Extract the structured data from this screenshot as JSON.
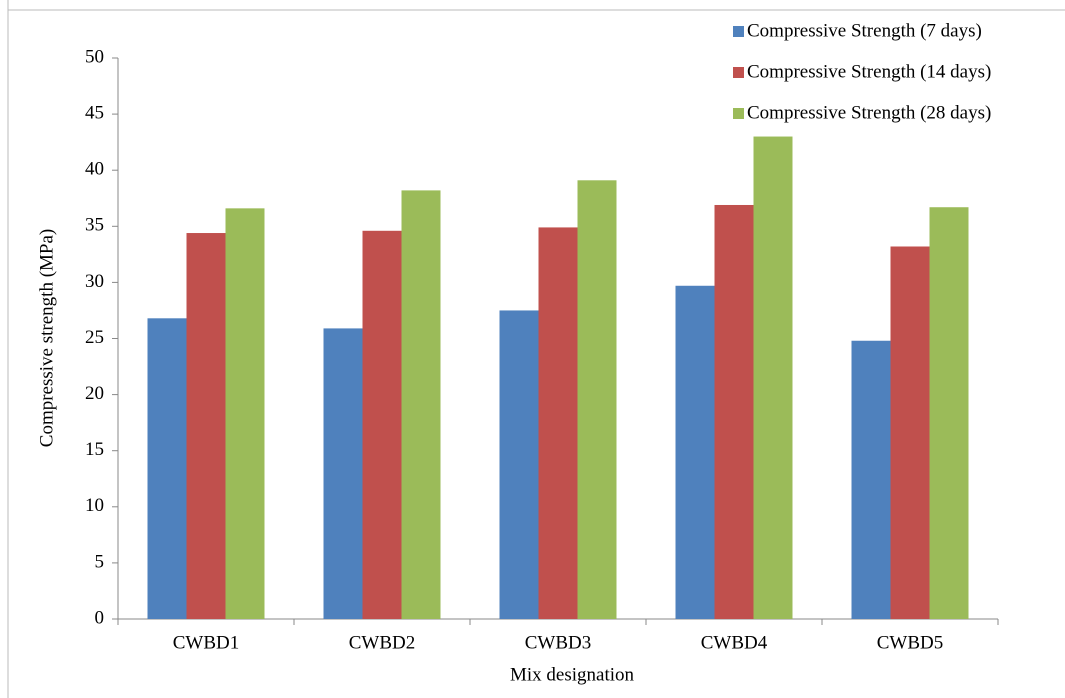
{
  "chart_data": {
    "type": "bar",
    "categories": [
      "CWBD1",
      "CWBD2",
      "CWBD3",
      "CWBD4",
      "CWBD5"
    ],
    "series": [
      {
        "name": "Compressive Strength (7 days)",
        "color": "#4f81bd",
        "values": [
          26.8,
          25.9,
          27.5,
          29.7,
          24.8
        ]
      },
      {
        "name": "Compressive Strength (14 days)",
        "color": "#c0504d",
        "values": [
          34.4,
          34.6,
          34.9,
          36.9,
          33.2
        ]
      },
      {
        "name": "Compressive Strength (28 days)",
        "color": "#9bbb59",
        "values": [
          36.6,
          38.2,
          39.1,
          43.0,
          36.7
        ]
      }
    ],
    "x_label": "Mix designation",
    "y_label": "Compressive strength (MPa)",
    "ylim": [
      0,
      50
    ],
    "yticks": [
      0,
      5,
      10,
      15,
      20,
      25,
      30,
      35,
      40,
      45,
      50
    ],
    "grid": false,
    "legend": "top-right"
  }
}
